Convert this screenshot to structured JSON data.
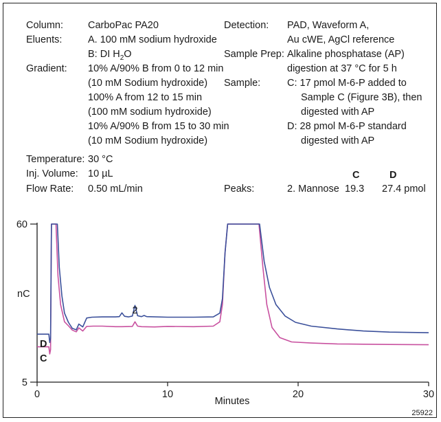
{
  "conditions": {
    "column_label": "Column:",
    "column_value": "CarboPac PA20",
    "eluents_label": "Eluents:",
    "eluent_a": "A.  100 mM sodium hydroxide",
    "eluent_b_pre": "B:  DI H",
    "eluent_b_sub": "2",
    "eluent_b_post": "O",
    "gradient_label": "Gradient:",
    "gradient_lines": [
      "10% A/90% B from 0 to 12 min",
      "(10 mM Sodium hydroxide)",
      "100% A from 12 to 15 min",
      "(100 mM sodium hydroxide)",
      "10% A/90% B from 15 to 30 min",
      "(10 mM Sodium hydroxide)"
    ],
    "temperature_label": "Temperature:",
    "temperature_value": "30 °C",
    "injvol_label": "Inj. Volume:",
    "injvol_value": "10 µL",
    "flow_label": "Flow Rate:",
    "flow_value": "0.50 mL/min",
    "detection_label": "Detection:",
    "detection_lines": [
      "PAD, Waveform A,",
      "Au cWE, AgCl reference"
    ],
    "prep_label": "Sample Prep:",
    "prep_lines": [
      "Alkaline phosphatase (AP)",
      "digestion at 37 °C for 5 h"
    ],
    "sample_label": "Sample:",
    "sample_lines": [
      "C:  17 pmol M-6-P added to",
      "Sample C (Figure 3B), then",
      "digested with AP",
      "D:  28 pmol M-6-P standard",
      "digested with AP"
    ],
    "peaks_label": "Peaks:",
    "peaks_col_c": "C",
    "peaks_col_d": "D",
    "peak_name": "2. Mannose",
    "peak_c": "19.3",
    "peak_d": "27.4 pmol"
  },
  "figure_id": "25922",
  "colors": {
    "trace_d": "#3a4f9a",
    "trace_c": "#c8509f",
    "axis": "#1a1a1a"
  },
  "chart_data": {
    "type": "line",
    "xlabel": "Minutes",
    "ylabel": "nC",
    "xlim": [
      0,
      30
    ],
    "ylim": [
      5,
      60
    ],
    "x_ticks": [
      0,
      10,
      20,
      30
    ],
    "y_tick_labels": [
      "5",
      "60"
    ],
    "peak_annotation": {
      "label": "2",
      "x": 7.5
    },
    "series": [
      {
        "name": "D",
        "points": [
          [
            0,
            21.7
          ],
          [
            0.9,
            21.7
          ],
          [
            0.97,
            18.8
          ],
          [
            1.03,
            20.2
          ],
          [
            1.1,
            60
          ],
          [
            1.55,
            60
          ],
          [
            1.7,
            45
          ],
          [
            1.9,
            35
          ],
          [
            2.1,
            29
          ],
          [
            2.4,
            25.8
          ],
          [
            2.7,
            23.7
          ],
          [
            3.0,
            23.2
          ],
          [
            3.2,
            25.2
          ],
          [
            3.5,
            24.2
          ],
          [
            3.8,
            27.3
          ],
          [
            4.2,
            27.6
          ],
          [
            5,
            27.7
          ],
          [
            6,
            27.7
          ],
          [
            6.3,
            27.8
          ],
          [
            6.5,
            29.1
          ],
          [
            6.7,
            27.9
          ],
          [
            7.0,
            27.7
          ],
          [
            7.3,
            28.0
          ],
          [
            7.5,
            31.7
          ],
          [
            7.7,
            28.1
          ],
          [
            8.0,
            27.8
          ],
          [
            8.2,
            28.2
          ],
          [
            8.4,
            27.8
          ],
          [
            10,
            27.6
          ],
          [
            12,
            27.6
          ],
          [
            13.5,
            27.7
          ],
          [
            14.0,
            29
          ],
          [
            14.2,
            34
          ],
          [
            14.4,
            50
          ],
          [
            14.6,
            60
          ],
          [
            17.05,
            60
          ],
          [
            17.4,
            47
          ],
          [
            17.8,
            38
          ],
          [
            18.3,
            32
          ],
          [
            19,
            28
          ],
          [
            19.8,
            25.8
          ],
          [
            21,
            24.5
          ],
          [
            23,
            23.5
          ],
          [
            25,
            22.8
          ],
          [
            27,
            22.4
          ],
          [
            30,
            22.2
          ]
        ]
      },
      {
        "name": "C",
        "points": [
          [
            0,
            17.3
          ],
          [
            0.9,
            17.3
          ],
          [
            0.97,
            14.8
          ],
          [
            1.03,
            16.3
          ],
          [
            1.1,
            60
          ],
          [
            1.45,
            60
          ],
          [
            1.6,
            42
          ],
          [
            1.8,
            32
          ],
          [
            2.1,
            26
          ],
          [
            2.4,
            24.6
          ],
          [
            2.7,
            23.1
          ],
          [
            3.0,
            22.5
          ],
          [
            3.2,
            23.9
          ],
          [
            3.5,
            22.8
          ],
          [
            3.8,
            24.4
          ],
          [
            4.3,
            24.5
          ],
          [
            5,
            24.5
          ],
          [
            6,
            24.3
          ],
          [
            6.5,
            24.3
          ],
          [
            7.3,
            24.4
          ],
          [
            7.5,
            26.0
          ],
          [
            7.7,
            24.5
          ],
          [
            8.0,
            24.3
          ],
          [
            9,
            24.2
          ],
          [
            10,
            24.4
          ],
          [
            12,
            24.3
          ],
          [
            13.5,
            24.5
          ],
          [
            14.0,
            26
          ],
          [
            14.2,
            32
          ],
          [
            14.4,
            50
          ],
          [
            14.6,
            60
          ],
          [
            17.0,
            60
          ],
          [
            17.3,
            45
          ],
          [
            17.6,
            32
          ],
          [
            18.0,
            24
          ],
          [
            18.6,
            20.5
          ],
          [
            19.5,
            19.0
          ],
          [
            21,
            18.6
          ],
          [
            23,
            18.3
          ],
          [
            25,
            18.2
          ],
          [
            27,
            18.1
          ],
          [
            30,
            18.0
          ]
        ]
      }
    ]
  }
}
